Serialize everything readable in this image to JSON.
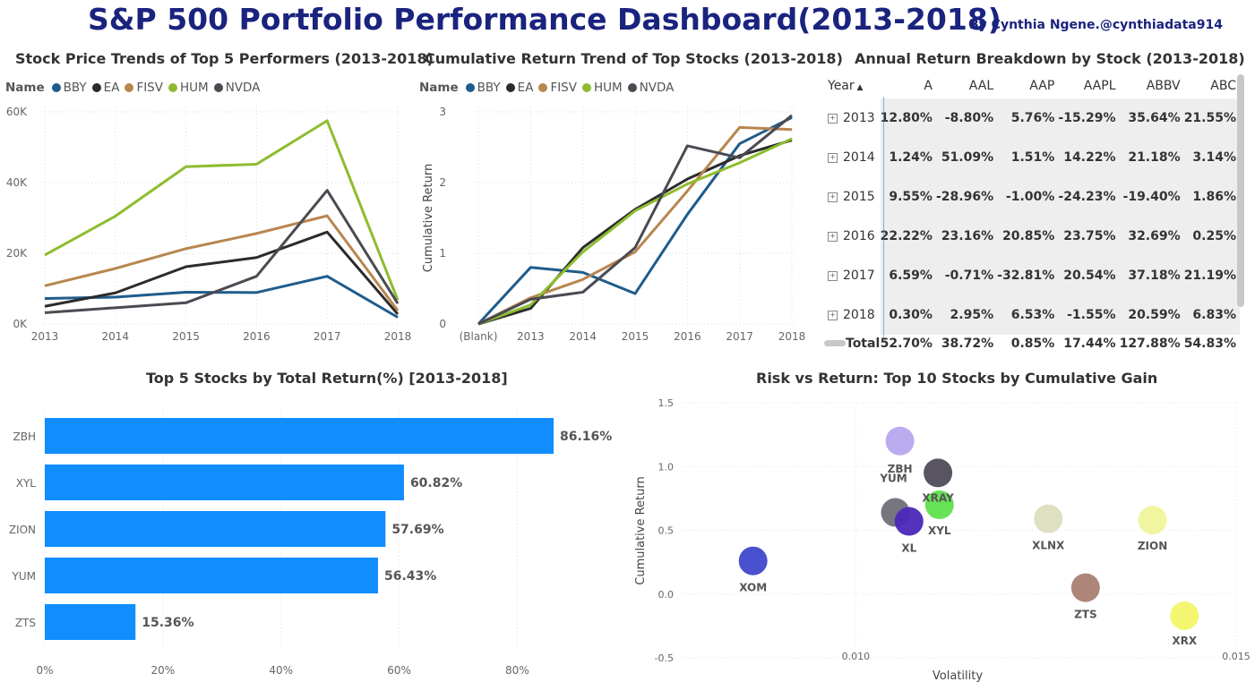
{
  "header": {
    "title": "S&P 500 Portfolio Performance Dashboard(2013-2018)",
    "byline": "By Cynthia Ngene.@cynthiadata914"
  },
  "legend_label": "Name",
  "chart_data": [
    {
      "id": "price",
      "type": "line",
      "title": "Stock Price Trends of Top 5 Performers (2013-2018)",
      "categories": [
        "2013",
        "2014",
        "2015",
        "2016",
        "2017",
        "2018"
      ],
      "yticks": [
        "0K",
        "20K",
        "40K",
        "60K"
      ],
      "ylim": [
        0,
        60000
      ],
      "legend": "top-left",
      "series": [
        {
          "name": "BBY",
          "color": "#1f5c8b",
          "values": [
            7200,
            7600,
            9000,
            8900,
            13500,
            1900
          ]
        },
        {
          "name": "EA",
          "color": "#2b2b2b",
          "values": [
            5000,
            8800,
            16200,
            18800,
            26000,
            2800
          ]
        },
        {
          "name": "FISV",
          "color": "#b8864f",
          "values": [
            10800,
            15700,
            21300,
            25600,
            30600,
            3800
          ]
        },
        {
          "name": "HUM",
          "color": "#8fbc2f",
          "values": [
            19500,
            30500,
            44500,
            45200,
            57500,
            6800
          ]
        },
        {
          "name": "NVDA",
          "color": "#4a4a52",
          "values": [
            3200,
            4600,
            6000,
            13500,
            37800,
            5800
          ]
        }
      ]
    },
    {
      "id": "cumulative",
      "type": "line",
      "title": "Cumulative Return Trend of Top Stocks (2013-2018)",
      "ylabel": "Cumulative Return",
      "categories": [
        "(Blank)",
        "2013",
        "2014",
        "2015",
        "2016",
        "2017",
        "2018"
      ],
      "yticks": [
        "0",
        "1",
        "2",
        "3"
      ],
      "ylim": [
        0,
        3
      ],
      "legend": "top-left",
      "series": [
        {
          "name": "BBY",
          "color": "#1f5c8b",
          "values": [
            0,
            0.8,
            0.73,
            0.43,
            1.55,
            2.55,
            2.92
          ]
        },
        {
          "name": "EA",
          "color": "#2b2b2b",
          "values": [
            0,
            0.22,
            1.08,
            1.62,
            2.05,
            2.38,
            2.6
          ]
        },
        {
          "name": "FISV",
          "color": "#b8864f",
          "values": [
            0,
            0.37,
            0.63,
            1.02,
            1.88,
            2.78,
            2.75
          ]
        },
        {
          "name": "HUM",
          "color": "#8fbc2f",
          "values": [
            0,
            0.27,
            1.02,
            1.6,
            1.98,
            2.28,
            2.62
          ]
        },
        {
          "name": "NVDA",
          "color": "#4a4a52",
          "values": [
            0,
            0.35,
            0.45,
            1.08,
            2.52,
            2.35,
            2.95
          ]
        }
      ]
    },
    {
      "id": "annual",
      "type": "table",
      "title": "Annual Return Breakdown by Stock (2013-2018)",
      "columns": [
        "Year",
        "A",
        "AAL",
        "AAP",
        "AAPL",
        "ABBV",
        "ABC"
      ],
      "rows": [
        [
          "2013",
          "12.80%",
          "-8.80%",
          "5.76%",
          "-15.29%",
          "35.64%",
          "21.55%"
        ],
        [
          "2014",
          "1.24%",
          "51.09%",
          "1.51%",
          "14.22%",
          "21.18%",
          "3.14%"
        ],
        [
          "2015",
          "9.55%",
          "-28.96%",
          "-1.00%",
          "-24.23%",
          "-19.40%",
          "1.86%"
        ],
        [
          "2016",
          "22.22%",
          "23.16%",
          "20.85%",
          "23.75%",
          "32.69%",
          "0.25%"
        ],
        [
          "2017",
          "6.59%",
          "-0.71%",
          "-32.81%",
          "20.54%",
          "37.18%",
          "21.19%"
        ],
        [
          "2018",
          "0.30%",
          "2.95%",
          "6.53%",
          "-1.55%",
          "20.59%",
          "6.83%"
        ]
      ],
      "total": [
        "Total",
        "52.70%",
        "38.72%",
        "0.85%",
        "17.44%",
        "127.88%",
        "54.83%"
      ]
    },
    {
      "id": "top5",
      "type": "bar",
      "orientation": "horizontal",
      "title": "Top 5 Stocks by Total Return(%) [2013-2018]",
      "categories": [
        "ZBH",
        "XYL",
        "ZION",
        "YUM",
        "ZTS"
      ],
      "values": [
        86.16,
        60.82,
        57.69,
        56.43,
        15.36
      ],
      "labels": [
        "86.16%",
        "60.82%",
        "57.69%",
        "56.43%",
        "15.36%"
      ],
      "color": "#118dff",
      "xticks": [
        "0%",
        "20%",
        "40%",
        "60%",
        "80%"
      ],
      "xlim": [
        0,
        86.16
      ]
    },
    {
      "id": "risk",
      "type": "scatter",
      "title": "Risk vs Return: Top 10 Stocks by Cumulative Gain",
      "xlabel": "Volatility",
      "ylabel": "Cumulative Return",
      "xlim": [
        0.0077,
        0.015
      ],
      "ylim": [
        -0.5,
        1.5
      ],
      "xticks": [
        "0.010",
        "0.015"
      ],
      "yticks": [
        "-0.5",
        "0.0",
        "0.5",
        "1.0",
        "1.5"
      ],
      "points": [
        {
          "name": "XOM",
          "x": 0.00865,
          "y": 0.26,
          "color": "#3f48cc"
        },
        {
          "name": "ZBH",
          "x": 0.01058,
          "y": 1.2,
          "color": "#b7a6ee"
        },
        {
          "name": "XRAY",
          "x": 0.01108,
          "y": 0.95,
          "color": "#4f4b5a"
        },
        {
          "name": "YUM",
          "x": 0.01052,
          "y": 0.64,
          "color": "#6f6f78"
        },
        {
          "name": "XL",
          "x": 0.0107,
          "y": 0.57,
          "color": "#4a28b8"
        },
        {
          "name": "XYL",
          "x": 0.0111,
          "y": 0.7,
          "color": "#5fe04e"
        },
        {
          "name": "XLNX",
          "x": 0.01253,
          "y": 0.59,
          "color": "#ddddbf"
        },
        {
          "name": "ZION",
          "x": 0.0139,
          "y": 0.58,
          "color": "#eef59a"
        },
        {
          "name": "ZTS",
          "x": 0.01302,
          "y": 0.05,
          "color": "#a97f72"
        },
        {
          "name": "XRX",
          "x": 0.01432,
          "y": -0.17,
          "color": "#f3f56a"
        }
      ]
    }
  ]
}
